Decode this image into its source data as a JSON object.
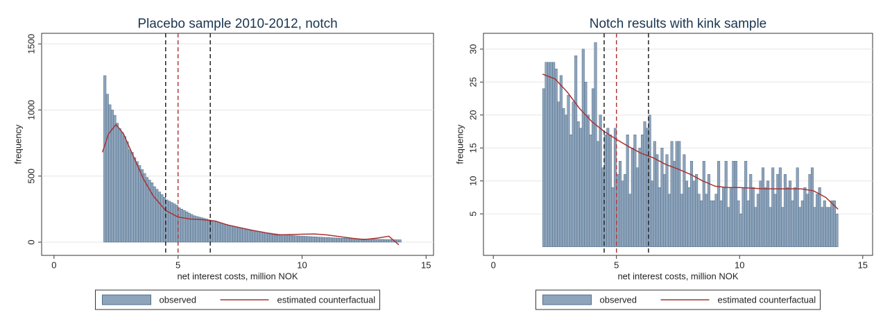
{
  "chart_data": [
    {
      "type": "histogram",
      "title": "Placebo sample 2010-2012, notch",
      "xlabel": "net interest costs, million NOK",
      "ylabel": "frequency",
      "xlim": [
        -0.5,
        15.3
      ],
      "ylim": [
        -100,
        1580
      ],
      "xticks": [
        0,
        5,
        10,
        15
      ],
      "yticks": [
        0,
        500,
        1000,
        1500
      ],
      "grid": true,
      "reference_lines": [
        {
          "x": 4.5,
          "color": "#222222"
        },
        {
          "x": 5,
          "color": "#b03a3a"
        },
        {
          "x": 6.3,
          "color": "#222222"
        }
      ],
      "series": [
        {
          "name": "observed",
          "type": "histogram",
          "color": "#8ea4bb",
          "bins": [
            2,
            2.1,
            2.2,
            2.3,
            2.4,
            2.5,
            2.6,
            2.7,
            2.8,
            2.9,
            3,
            3.1,
            3.2,
            3.3,
            3.4,
            3.5,
            3.6,
            3.7,
            3.8,
            3.9,
            4,
            4.1,
            4.2,
            4.3,
            4.4,
            4.5,
            4.6,
            4.7,
            4.8,
            4.9,
            5,
            5.1,
            5.2,
            5.3,
            5.4,
            5.5,
            5.6,
            5.7,
            5.8,
            5.9,
            6,
            6.1,
            6.2,
            6.3,
            6.4,
            6.5,
            6.6,
            6.7,
            6.8,
            6.9,
            7,
            7.1,
            7.2,
            7.3,
            7.4,
            7.5,
            7.6,
            7.7,
            7.8,
            7.9,
            8,
            8.1,
            8.2,
            8.3,
            8.4,
            8.5,
            8.6,
            8.7,
            8.8,
            8.9,
            9,
            9.1,
            9.2,
            9.3,
            9.4,
            9.5,
            9.6,
            9.7,
            9.8,
            9.9,
            10,
            10.1,
            10.2,
            10.3,
            10.4,
            10.5,
            10.6,
            10.7,
            10.8,
            10.9,
            11,
            11.1,
            11.2,
            11.3,
            11.4,
            11.5,
            11.6,
            11.7,
            11.8,
            11.9,
            12,
            12.1,
            12.2,
            12.3,
            12.4,
            12.5,
            12.6,
            12.7,
            12.8,
            12.9,
            13,
            13.1,
            13.2,
            13.3,
            13.4,
            13.5,
            13.6,
            13.7,
            13.8,
            13.9,
            14
          ],
          "values": [
            1260,
            1120,
            1040,
            1000,
            960,
            900,
            860,
            830,
            800,
            760,
            700,
            680,
            640,
            610,
            580,
            550,
            520,
            490,
            470,
            450,
            420,
            400,
            380,
            360,
            340,
            320,
            310,
            300,
            290,
            280,
            260,
            250,
            240,
            230,
            220,
            210,
            200,
            195,
            190,
            185,
            180,
            175,
            170,
            165,
            160,
            155,
            150,
            145,
            140,
            135,
            130,
            125,
            120,
            115,
            110,
            105,
            100,
            95,
            90,
            88,
            85,
            82,
            80,
            78,
            75,
            72,
            70,
            68,
            65,
            63,
            60,
            58,
            56,
            55,
            53,
            52,
            50,
            48,
            47,
            46,
            45,
            44,
            43,
            42,
            41,
            40,
            39,
            38,
            37,
            36,
            35,
            34,
            33,
            32,
            31,
            30,
            30,
            29,
            28,
            28,
            27,
            26,
            26,
            25,
            25,
            24,
            24,
            23,
            23,
            22,
            22,
            21,
            21,
            20,
            20,
            20,
            19,
            19,
            18,
            18
          ]
        },
        {
          "name": "estimated counterfactual",
          "type": "line",
          "color": "#a83232",
          "x": [
            1.95,
            2.2,
            2.5,
            2.8,
            3.2,
            3.6,
            4,
            4.5,
            5,
            5.5,
            6,
            6.5,
            7,
            8,
            9,
            10,
            10.5,
            11,
            12,
            12.5,
            13,
            13.5,
            13.9
          ],
          "values": [
            680,
            820,
            890,
            820,
            650,
            480,
            350,
            240,
            190,
            175,
            170,
            160,
            130,
            90,
            55,
            60,
            62,
            55,
            30,
            20,
            30,
            45,
            -20
          ]
        }
      ]
    },
    {
      "type": "histogram",
      "title": "Notch results with kink sample",
      "xlabel": "net interest costs, million NOK",
      "ylabel": "frequency",
      "xlim": [
        -0.4,
        15.4
      ],
      "ylim": [
        -1.3,
        32.4
      ],
      "xticks": [
        0,
        5,
        10,
        15
      ],
      "yticks": [
        5,
        10,
        15,
        20,
        25,
        30
      ],
      "grid": true,
      "reference_lines": [
        {
          "x": 4.5,
          "color": "#222222"
        },
        {
          "x": 5,
          "color": "#b03a3a"
        },
        {
          "x": 6.3,
          "color": "#222222"
        }
      ],
      "series": [
        {
          "name": "observed",
          "type": "histogram",
          "color": "#8ea4bb",
          "bins": [
            2,
            2.1,
            2.2,
            2.3,
            2.4,
            2.5,
            2.6,
            2.7,
            2.8,
            2.9,
            3,
            3.1,
            3.2,
            3.3,
            3.4,
            3.5,
            3.6,
            3.7,
            3.8,
            3.9,
            4,
            4.1,
            4.2,
            4.3,
            4.4,
            4.5,
            4.6,
            4.7,
            4.8,
            4.9,
            5,
            5.1,
            5.2,
            5.3,
            5.4,
            5.5,
            5.6,
            5.7,
            5.8,
            5.9,
            6,
            6.1,
            6.2,
            6.3,
            6.4,
            6.5,
            6.6,
            6.7,
            6.8,
            6.9,
            7,
            7.1,
            7.2,
            7.3,
            7.4,
            7.5,
            7.6,
            7.7,
            7.8,
            7.9,
            8,
            8.1,
            8.2,
            8.3,
            8.4,
            8.5,
            8.6,
            8.7,
            8.8,
            8.9,
            9,
            9.1,
            9.2,
            9.3,
            9.4,
            9.5,
            9.6,
            9.7,
            9.8,
            9.9,
            10,
            10.1,
            10.2,
            10.3,
            10.4,
            10.5,
            10.6,
            10.7,
            10.8,
            10.9,
            11,
            11.1,
            11.2,
            11.3,
            11.4,
            11.5,
            11.6,
            11.7,
            11.8,
            11.9,
            12,
            12.1,
            12.2,
            12.3,
            12.4,
            12.5,
            12.6,
            12.7,
            12.8,
            12.9,
            13,
            13.1,
            13.2,
            13.3,
            13.4,
            13.5,
            13.6,
            13.7,
            13.8,
            13.9,
            14
          ],
          "values": [
            24,
            28,
            28,
            28,
            28,
            27,
            22,
            26,
            21,
            20,
            23,
            17,
            22,
            29,
            19,
            18,
            30,
            25,
            20,
            17,
            24,
            31,
            16,
            20,
            12,
            17,
            18,
            17,
            9,
            18,
            11,
            13,
            10,
            11,
            17,
            8,
            15,
            17,
            12,
            15,
            17,
            19,
            18,
            20,
            10,
            16,
            14,
            9,
            15,
            11,
            14,
            8,
            16,
            13,
            16,
            16,
            8,
            14,
            10,
            9,
            13,
            10,
            11,
            8,
            7,
            13,
            8,
            11,
            7,
            7,
            8,
            13,
            7,
            9,
            13,
            6,
            9,
            13,
            13,
            7,
            5,
            9,
            13,
            7,
            11,
            9,
            6,
            8,
            10,
            12,
            9,
            10,
            6,
            12,
            8,
            11,
            12,
            6,
            11,
            9,
            10,
            7,
            9,
            12,
            6,
            7,
            9,
            8,
            11,
            12,
            6,
            8,
            9,
            6,
            7,
            6,
            6,
            7,
            7,
            5
          ]
        },
        {
          "name": "estimated counterfactual",
          "type": "line",
          "color": "#a83232",
          "x": [
            2,
            2.5,
            3,
            3.5,
            4,
            4.5,
            5,
            5.5,
            6,
            6.5,
            7,
            7.5,
            8,
            8.5,
            9,
            9.5,
            10,
            10.5,
            11,
            11.5,
            12,
            12.5,
            13,
            13.5,
            14
          ],
          "values": [
            26.2,
            25.5,
            23.5,
            21,
            19,
            17.5,
            16.3,
            15.2,
            14.2,
            13.5,
            12.5,
            11.8,
            11,
            10,
            9.2,
            9,
            9,
            8.9,
            8.8,
            8.8,
            8.8,
            8.8,
            8.5,
            7.5,
            5.7
          ]
        }
      ]
    }
  ]
}
